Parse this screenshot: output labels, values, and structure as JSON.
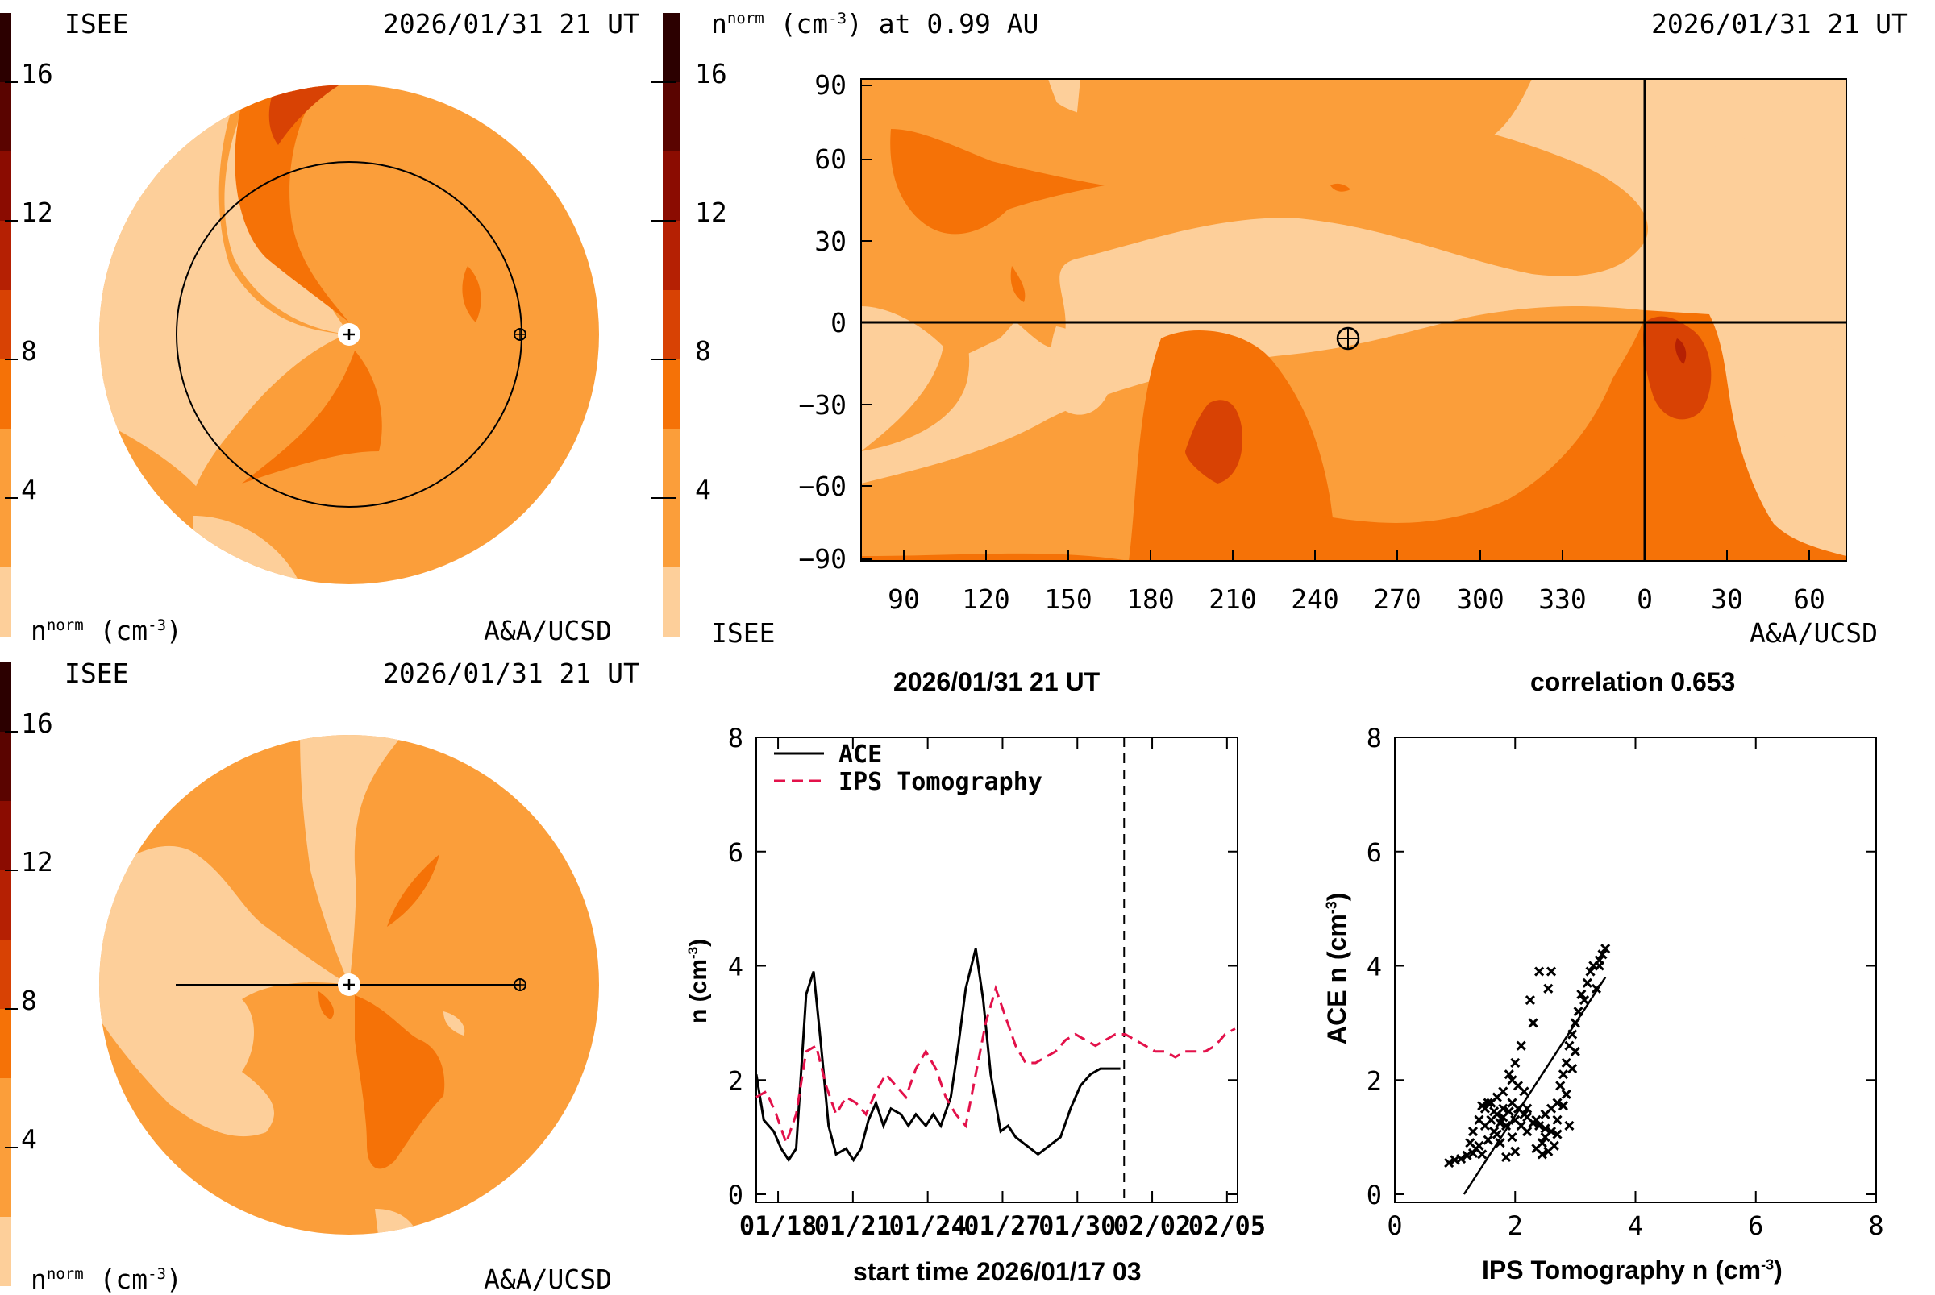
{
  "colors": {
    "bg": "#ffffff",
    "level_1": "#fdcf9a",
    "level_2": "#fb9e3a",
    "level_3": "#f57207",
    "level_4": "#d84204",
    "level_5": "#b52003",
    "level_6": "#8b0c01",
    "level_7": "#5a0400",
    "level_8": "#2c0000",
    "ace": "#000000",
    "ips": "#e3114a"
  },
  "colorbar": {
    "ticks": [
      "16",
      "12",
      "8",
      "4"
    ]
  },
  "panel_top_left": {
    "org": "ISEE",
    "time": "2026/01/31 21 UT",
    "units": "(cm",
    "units_exp": "-3",
    "units_close": ")",
    "n_label": "n",
    "n_sup": "norm",
    "credit": "A&A/UCSD"
  },
  "panel_bottom_left": {
    "org": "ISEE",
    "time": "2026/01/31 21 UT",
    "n_label": "n",
    "n_sup": "norm",
    "units": "(cm",
    "units_exp": "-3",
    "units_close": ")",
    "credit": "A&A/UCSD"
  },
  "panel_top_right": {
    "n_label": "n",
    "n_sup": "norm",
    "units": "(cm",
    "units_exp": "-3",
    "title_rest": ") at 0.99 AU",
    "time": "2026/01/31 21 UT",
    "org": "ISEE",
    "credit": "A&A/UCSD"
  },
  "chart_data": [
    {
      "type": "line",
      "title": "2026/01/31 21 UT",
      "xlabel": "start time 2026/01/17 03",
      "ylabel": "n (cm",
      "ylabel_exp": "-3",
      "ylabel_close": ")",
      "ylim": [
        0,
        8
      ],
      "yticks": [
        "0",
        "2",
        "4",
        "6",
        "8"
      ],
      "xlim": [
        0,
        19.3
      ],
      "xticks": [
        {
          "label": "01/18",
          "day": 0.875
        },
        {
          "label": "01/21",
          "day": 3.875
        },
        {
          "label": "01/24",
          "day": 6.875
        },
        {
          "label": "01/27",
          "day": 9.875
        },
        {
          "label": "01/30",
          "day": 12.875
        },
        {
          "label": "02/02",
          "day": 15.875
        },
        {
          "label": "02/05",
          "day": 18.875
        }
      ],
      "now_marker_day": 14.75,
      "series": [
        {
          "name": "ACE",
          "style": "solid",
          "x": [
            0,
            0.3,
            0.7,
            1.0,
            1.3,
            1.6,
            2.0,
            2.3,
            2.6,
            2.9,
            3.2,
            3.6,
            3.9,
            4.2,
            4.5,
            4.8,
            5.1,
            5.4,
            5.8,
            6.1,
            6.4,
            6.8,
            7.1,
            7.4,
            7.8,
            8.1,
            8.4,
            8.8,
            9.1,
            9.4,
            9.8,
            10.1,
            10.4,
            10.7,
            11.0,
            11.3,
            11.6,
            11.9,
            12.2,
            12.6,
            13.0,
            13.4,
            13.8,
            14.2,
            14.6
          ],
          "values": [
            2.1,
            1.3,
            1.1,
            0.8,
            0.6,
            0.8,
            3.5,
            3.9,
            2.6,
            1.2,
            0.7,
            0.8,
            0.6,
            0.8,
            1.3,
            1.6,
            1.2,
            1.5,
            1.4,
            1.2,
            1.4,
            1.2,
            1.4,
            1.2,
            1.7,
            2.6,
            3.6,
            4.3,
            3.4,
            2.1,
            1.1,
            1.2,
            1.0,
            0.9,
            0.8,
            0.7,
            0.8,
            0.9,
            1.0,
            1.5,
            1.9,
            2.1,
            2.2,
            2.2,
            2.2
          ]
        },
        {
          "name": "IPS Tomography",
          "style": "dashed",
          "x": [
            0,
            0.4,
            0.8,
            1.2,
            1.6,
            2.0,
            2.4,
            2.8,
            3.2,
            3.6,
            4.0,
            4.4,
            4.8,
            5.2,
            5.6,
            6.0,
            6.4,
            6.8,
            7.2,
            7.6,
            8.0,
            8.4,
            8.8,
            9.2,
            9.6,
            10.0,
            10.4,
            10.8,
            11.2,
            11.6,
            12.0,
            12.4,
            12.8,
            13.2,
            13.6,
            14.0,
            14.4,
            14.8,
            15.2,
            15.6,
            16.0,
            16.4,
            16.8,
            17.2,
            17.6,
            18.0,
            18.4,
            18.8,
            19.2
          ],
          "values": [
            1.7,
            1.8,
            1.4,
            0.9,
            1.4,
            2.5,
            2.6,
            1.9,
            1.4,
            1.7,
            1.6,
            1.4,
            1.8,
            2.1,
            1.9,
            1.7,
            2.2,
            2.5,
            2.2,
            1.7,
            1.4,
            1.2,
            2.1,
            3.0,
            3.6,
            3.1,
            2.6,
            2.3,
            2.3,
            2.4,
            2.5,
            2.7,
            2.8,
            2.7,
            2.6,
            2.7,
            2.8,
            2.8,
            2.7,
            2.6,
            2.5,
            2.5,
            2.4,
            2.5,
            2.5,
            2.5,
            2.6,
            2.8,
            2.9
          ]
        }
      ]
    },
    {
      "type": "scatter",
      "title": "correlation 0.653",
      "xlabel": "IPS Tomography n (cm",
      "xlabel_exp": "-3",
      "xlabel_close": ")",
      "ylabel": "ACE n (cm",
      "ylabel_exp": "-3",
      "ylabel_close": ")",
      "xlim": [
        0,
        8
      ],
      "ylim": [
        0,
        8
      ],
      "ticks": [
        "0",
        "2",
        "4",
        "6",
        "8"
      ],
      "fit_line": {
        "x": [
          1.15,
          3.5
        ],
        "y": [
          0.0,
          3.8
        ]
      },
      "points": [
        [
          0.9,
          0.55
        ],
        [
          1.0,
          0.6
        ],
        [
          1.1,
          0.62
        ],
        [
          1.2,
          0.68
        ],
        [
          1.3,
          0.72
        ],
        [
          1.35,
          0.8
        ],
        [
          1.4,
          0.85
        ],
        [
          1.45,
          0.7
        ],
        [
          1.5,
          1.2
        ],
        [
          1.5,
          1.5
        ],
        [
          1.55,
          0.95
        ],
        [
          1.6,
          1.3
        ],
        [
          1.6,
          1.6
        ],
        [
          1.65,
          1.1
        ],
        [
          1.7,
          1.7
        ],
        [
          1.7,
          1.4
        ],
        [
          1.75,
          0.9
        ],
        [
          1.75,
          1.25
        ],
        [
          1.8,
          1.5
        ],
        [
          1.8,
          1.8
        ],
        [
          1.85,
          1.2
        ],
        [
          1.85,
          0.65
        ],
        [
          1.9,
          1.45
        ],
        [
          1.9,
          2.1
        ],
        [
          1.95,
          1.6
        ],
        [
          1.95,
          1.0
        ],
        [
          2.0,
          1.3
        ],
        [
          2.0,
          2.3
        ],
        [
          2.05,
          1.5
        ],
        [
          2.05,
          1.9
        ],
        [
          2.1,
          1.2
        ],
        [
          2.1,
          2.6
        ],
        [
          2.15,
          1.4
        ],
        [
          2.2,
          1.5
        ],
        [
          2.2,
          1.35
        ],
        [
          2.25,
          3.4
        ],
        [
          2.3,
          3.0
        ],
        [
          2.35,
          1.3
        ],
        [
          2.35,
          0.8
        ],
        [
          2.4,
          1.2
        ],
        [
          2.4,
          3.9
        ],
        [
          2.45,
          0.7
        ],
        [
          2.5,
          1.0
        ],
        [
          2.5,
          1.4
        ],
        [
          2.55,
          3.6
        ],
        [
          2.55,
          0.75
        ],
        [
          2.6,
          3.9
        ],
        [
          2.6,
          1.1
        ],
        [
          2.65,
          0.85
        ],
        [
          2.7,
          1.3
        ],
        [
          2.7,
          1.6
        ],
        [
          2.75,
          1.9
        ],
        [
          2.8,
          2.1
        ],
        [
          2.8,
          1.55
        ],
        [
          2.85,
          2.3
        ],
        [
          2.85,
          1.75
        ],
        [
          2.9,
          2.6
        ],
        [
          2.9,
          1.2
        ],
        [
          2.95,
          2.8
        ],
        [
          3.0,
          3.0
        ],
        [
          3.05,
          3.2
        ],
        [
          3.1,
          3.5
        ],
        [
          3.15,
          3.4
        ],
        [
          3.2,
          3.7
        ],
        [
          3.25,
          3.9
        ],
        [
          3.3,
          4.0
        ],
        [
          3.35,
          3.6
        ],
        [
          3.4,
          4.1
        ],
        [
          3.45,
          4.2
        ],
        [
          3.5,
          4.3
        ],
        [
          1.3,
          1.1
        ],
        [
          1.4,
          1.3
        ],
        [
          1.55,
          1.6
        ],
        [
          1.65,
          1.45
        ],
        [
          1.8,
          1.35
        ],
        [
          2.0,
          0.75
        ],
        [
          2.15,
          1.8
        ],
        [
          2.3,
          1.25
        ],
        [
          2.45,
          0.9
        ],
        [
          2.7,
          1.05
        ],
        [
          2.95,
          2.2
        ],
        [
          3.0,
          2.5
        ],
        [
          2.6,
          1.5
        ],
        [
          2.5,
          1.15
        ],
        [
          1.25,
          0.9
        ],
        [
          1.45,
          1.55
        ],
        [
          1.7,
          1.05
        ],
        [
          1.95,
          2.0
        ],
        [
          2.2,
          1.1
        ],
        [
          3.4,
          4.0
        ]
      ]
    }
  ]
}
